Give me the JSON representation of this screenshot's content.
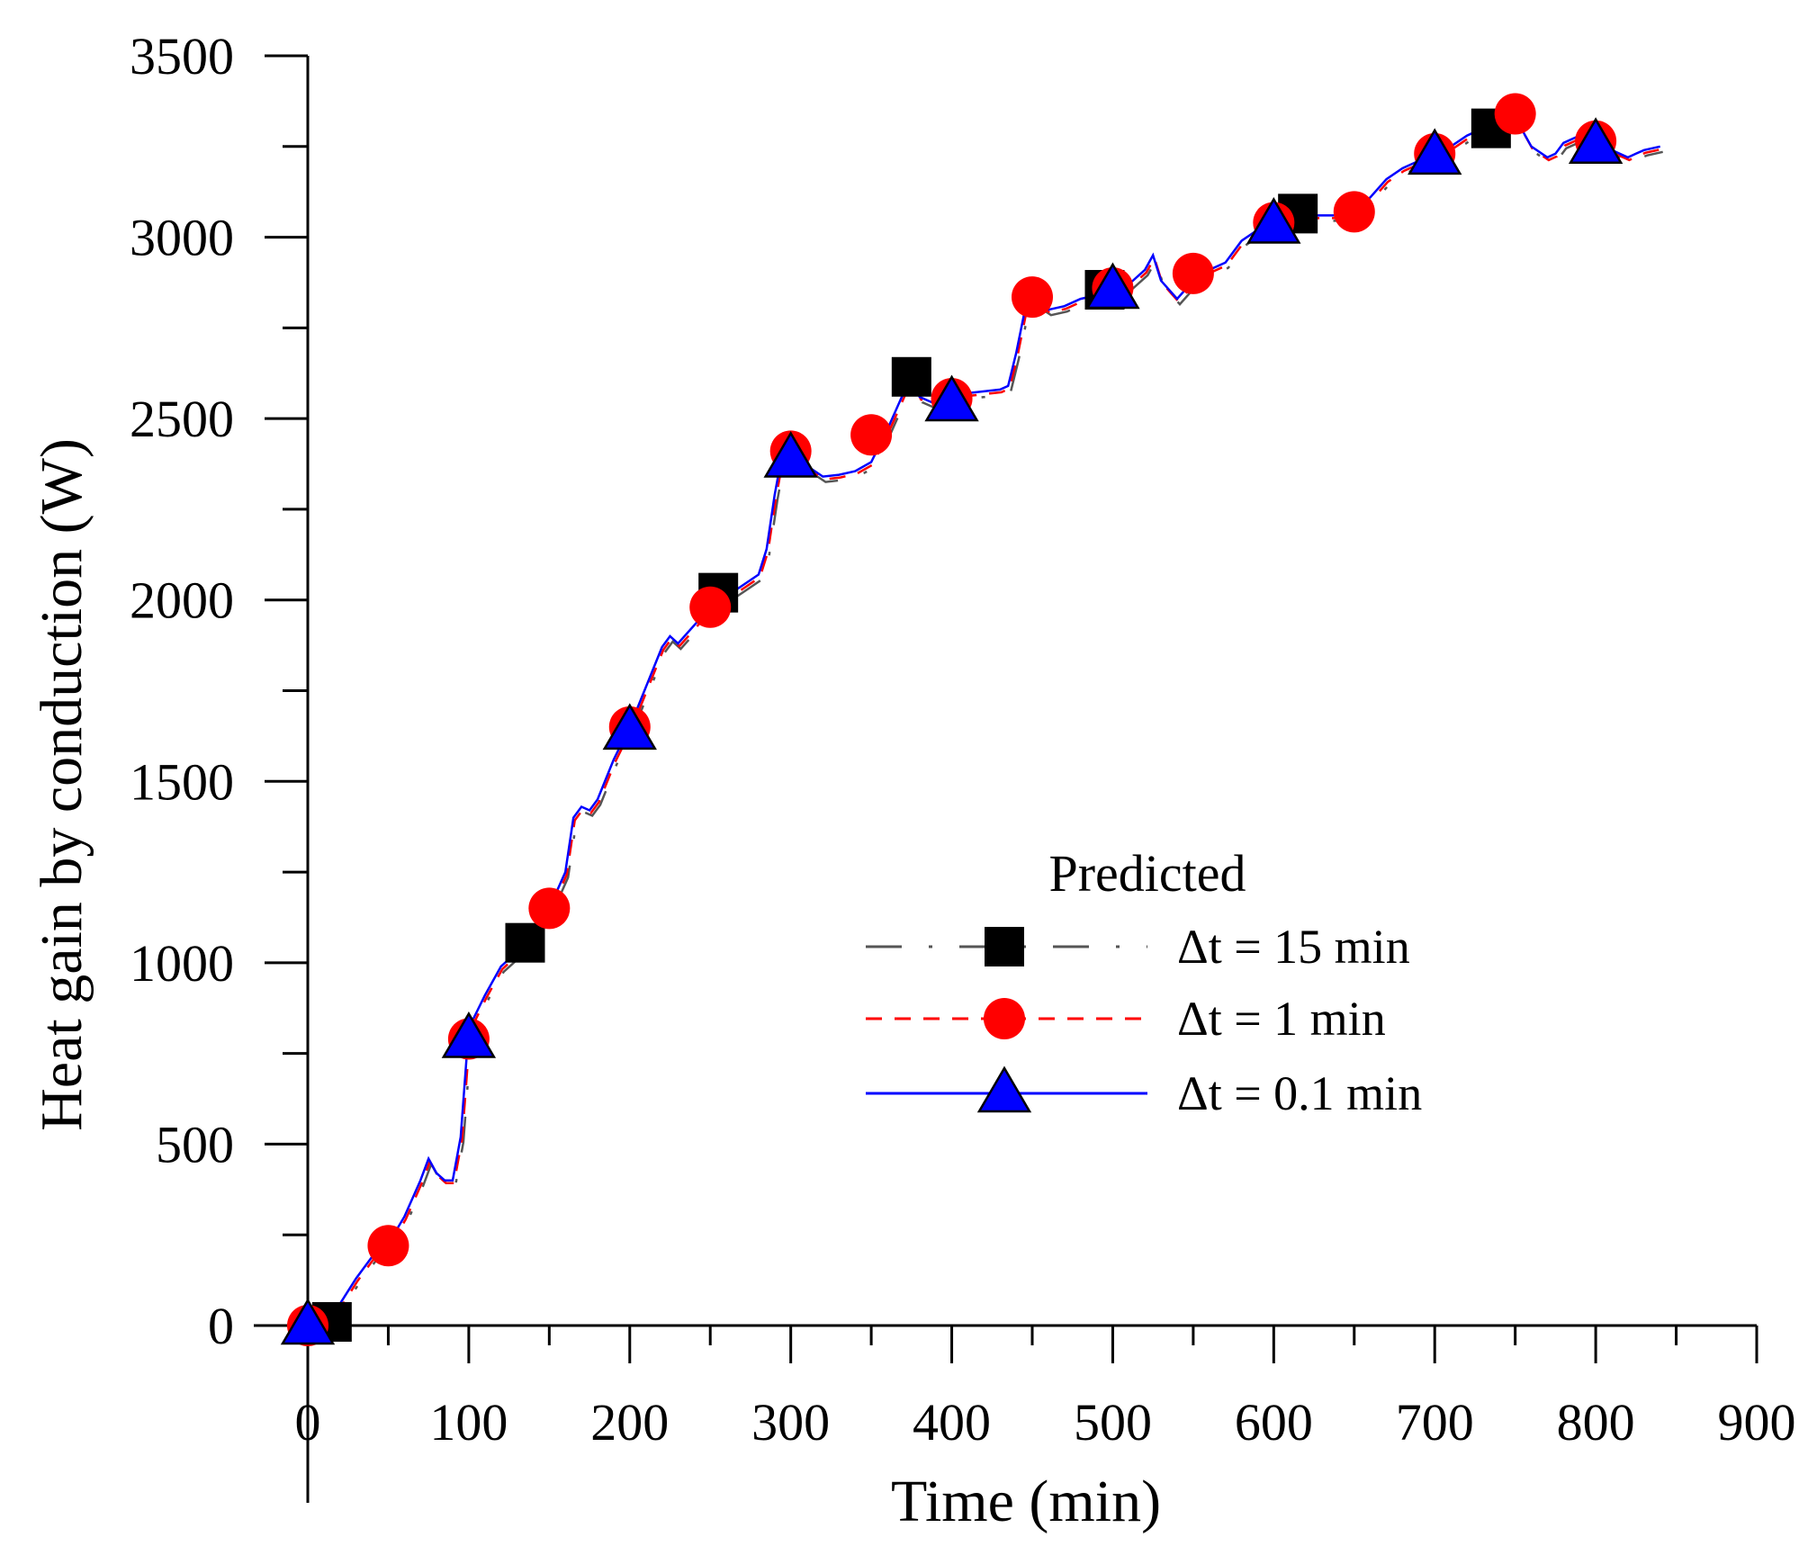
{
  "chart_data": {
    "type": "line",
    "title": "",
    "xlabel": "Time (min)",
    "ylabel": "Heat gain by conduction (W)",
    "xlim": [
      0,
      900
    ],
    "ylim": [
      0,
      3500
    ],
    "xticks": [
      0,
      100,
      200,
      300,
      400,
      500,
      600,
      700,
      800,
      900
    ],
    "yticks": [
      0,
      500,
      1000,
      1500,
      2000,
      2500,
      3000,
      3500
    ],
    "xtick_labels": [
      "0",
      "100",
      "200",
      "300",
      "400",
      "500",
      "600",
      "700",
      "800",
      "900"
    ],
    "ytick_labels": [
      "0",
      "500",
      "1000",
      "1500",
      "2000",
      "2500",
      "3000",
      "3500"
    ],
    "legend": {
      "title": "Predicted",
      "position": "center-right",
      "entries": [
        "Δt = 15 min",
        "Δt = 1 min",
        "Δt = 0.1 min"
      ]
    },
    "curve": {
      "x": [
        0,
        10,
        20,
        30,
        40,
        50,
        60,
        70,
        75,
        80,
        85,
        90,
        95,
        100,
        110,
        120,
        130,
        140,
        150,
        160,
        165,
        170,
        175,
        180,
        190,
        200,
        210,
        220,
        225,
        230,
        240,
        250,
        260,
        270,
        280,
        285,
        290,
        295,
        300,
        310,
        320,
        330,
        340,
        350,
        360,
        370,
        375,
        380,
        390,
        400,
        410,
        420,
        430,
        435,
        440,
        445,
        450,
        460,
        470,
        480,
        490,
        500,
        510,
        520,
        525,
        530,
        540,
        550,
        560,
        570,
        580,
        590,
        600,
        610,
        620,
        630,
        640,
        650,
        660,
        670,
        680,
        690,
        700,
        710,
        720,
        730,
        740,
        750,
        755,
        760,
        770,
        775,
        780,
        790,
        800,
        810,
        820,
        825,
        830,
        840
      ],
      "y": [
        0,
        20,
        60,
        130,
        190,
        225,
        300,
        400,
        460,
        420,
        400,
        400,
        520,
        820,
        910,
        990,
        1030,
        1080,
        1150,
        1250,
        1400,
        1430,
        1420,
        1450,
        1560,
        1650,
        1760,
        1870,
        1900,
        1880,
        1930,
        1980,
        2010,
        2040,
        2070,
        2140,
        2290,
        2410,
        2400,
        2370,
        2340,
        2345,
        2355,
        2380,
        2470,
        2570,
        2610,
        2560,
        2540,
        2550,
        2570,
        2575,
        2580,
        2590,
        2680,
        2790,
        2830,
        2800,
        2810,
        2830,
        2840,
        2850,
        2870,
        2910,
        2950,
        2880,
        2830,
        2880,
        2910,
        2930,
        2990,
        3020,
        3040,
        3060,
        3060,
        3060,
        3060,
        3070,
        3110,
        3160,
        3190,
        3210,
        3230,
        3250,
        3280,
        3300,
        3315,
        3330,
        3290,
        3250,
        3220,
        3230,
        3260,
        3280,
        3260,
        3240,
        3220,
        3230,
        3240,
        3250
      ]
    },
    "series": [
      {
        "name": "Δt = 15 min",
        "line_color": "#555555",
        "marker_color": "#000000",
        "marker": "square",
        "dash": "long-dash-dot",
        "markers": [
          [
            15,
            10
          ],
          [
            135,
            1055
          ],
          [
            255,
            2020
          ],
          [
            375,
            2615
          ],
          [
            495,
            2855
          ],
          [
            615,
            3065
          ],
          [
            735,
            3300
          ]
        ]
      },
      {
        "name": "Δt = 1 min",
        "line_color": "#ff0000",
        "marker_color": "#ff0000",
        "marker": "circle",
        "dash": "dashed",
        "markers": [
          [
            0,
            0
          ],
          [
            50,
            220
          ],
          [
            100,
            790
          ],
          [
            150,
            1150
          ],
          [
            200,
            1650
          ],
          [
            250,
            1980
          ],
          [
            300,
            2410
          ],
          [
            350,
            2455
          ],
          [
            400,
            2555
          ],
          [
            450,
            2835
          ],
          [
            500,
            2860
          ],
          [
            550,
            2900
          ],
          [
            600,
            3040
          ],
          [
            650,
            3070
          ],
          [
            700,
            3230
          ],
          [
            750,
            3340
          ],
          [
            800,
            3265
          ]
        ]
      },
      {
        "name": "Δt = 0.1 min",
        "line_color": "#0000ff",
        "marker_color": "#0000ff",
        "marker": "triangle",
        "dash": "solid",
        "markers": [
          [
            0,
            0
          ],
          [
            100,
            790
          ],
          [
            200,
            1640
          ],
          [
            300,
            2390
          ],
          [
            400,
            2545
          ],
          [
            500,
            2855
          ],
          [
            600,
            3035
          ],
          [
            700,
            3225
          ],
          [
            800,
            3255
          ]
        ]
      }
    ]
  }
}
